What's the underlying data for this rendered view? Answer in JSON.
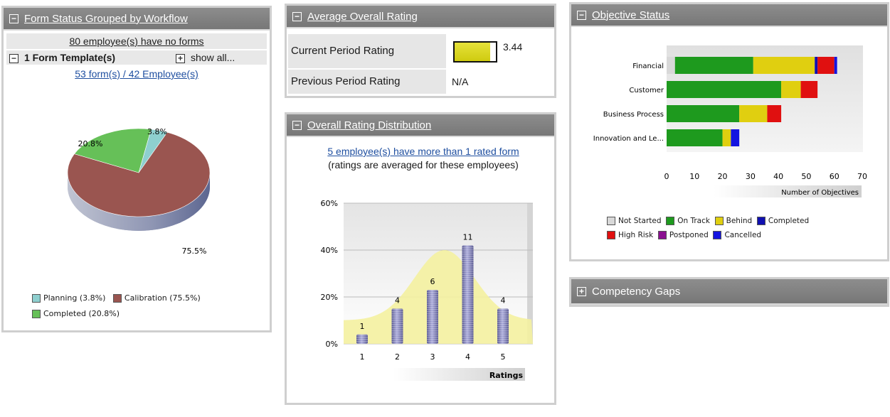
{
  "form_status": {
    "title": "Form Status Grouped by Workflow",
    "no_forms_text": "80 employee(s) have no forms",
    "template_label": "1 Form Template(s)",
    "show_all": "show all...",
    "forms_link": "53 form(s) / 42 Employee(s)",
    "legend": [
      {
        "label": "Planning (3.8%)",
        "color": "#8ecfcf"
      },
      {
        "label": "Calibration (75.5%)",
        "color": "#9a5550"
      },
      {
        "label": "Completed (20.8%)",
        "color": "#66c058"
      }
    ],
    "chart_data": {
      "type": "pie",
      "labels": [
        "Planning",
        "Calibration",
        "Completed"
      ],
      "values": [
        3.8,
        75.5,
        20.8
      ],
      "colors": [
        "#8ecfcf",
        "#9a5550",
        "#66c058"
      ],
      "data_labels": [
        "3.8%",
        "75.5%",
        "20.8%"
      ]
    }
  },
  "avg_rating": {
    "title": "Average Overall Rating",
    "rows": [
      {
        "label": "Current Period Rating",
        "value": "3.44",
        "fill_fraction": 0.86
      },
      {
        "label": "Previous Period Rating",
        "value": "N/A"
      }
    ]
  },
  "rating_dist": {
    "title": "Overall Rating Distribution",
    "link": "5 employee(s) have more than 1 rated form",
    "note": "(ratings are averaged for these employees)",
    "chart_data": {
      "type": "bar",
      "categories": [
        "1",
        "2",
        "3",
        "4",
        "5"
      ],
      "values": [
        4,
        15,
        23,
        42,
        15
      ],
      "data_labels": [
        "1",
        "4",
        "6",
        "11",
        "4"
      ],
      "yticks": [
        "60%",
        "40%",
        "20%",
        "0%"
      ],
      "ylim": [
        0,
        60
      ],
      "xlabel": "Ratings",
      "bar_color": "#7a79b4",
      "curve_color": "#f3f0a0"
    }
  },
  "objective_status": {
    "title": "Objective Status",
    "legend": [
      {
        "label": "Not Started",
        "color": "#d8d8d8"
      },
      {
        "label": "On Track",
        "color": "#1e9a1e"
      },
      {
        "label": "Behind",
        "color": "#e0cf10"
      },
      {
        "label": "Completed",
        "color": "#1010b0"
      },
      {
        "label": "High Risk",
        "color": "#e01010"
      },
      {
        "label": "Postponed",
        "color": "#8a1090"
      },
      {
        "label": "Cancelled",
        "color": "#1414e0"
      }
    ],
    "chart_data": {
      "type": "bar",
      "orientation": "horizontal",
      "categories": [
        "Financial",
        "Customer",
        "Business Process",
        "Innovation and Le..."
      ],
      "series": [
        {
          "name": "Not Started",
          "values": [
            3,
            0,
            0,
            0
          ]
        },
        {
          "name": "On Track",
          "values": [
            28,
            41,
            26,
            20
          ]
        },
        {
          "name": "Behind",
          "values": [
            22,
            7,
            10,
            3
          ]
        },
        {
          "name": "Completed",
          "values": [
            1,
            0,
            0,
            0
          ]
        },
        {
          "name": "High Risk",
          "values": [
            6,
            6,
            5,
            0
          ]
        },
        {
          "name": "Postponed",
          "values": [
            0,
            0,
            0,
            0
          ]
        },
        {
          "name": "Cancelled",
          "values": [
            1,
            0,
            0,
            3
          ]
        }
      ],
      "series_colors": [
        "#d8d8d8",
        "#1e9a1e",
        "#e0cf10",
        "#1010b0",
        "#e01010",
        "#8a1090",
        "#1414e0"
      ],
      "xticks": [
        "0",
        "10",
        "20",
        "30",
        "40",
        "50",
        "60",
        "70"
      ],
      "xlim": [
        0,
        70
      ],
      "xlabel": "Number of Objectives"
    }
  },
  "competency": {
    "title": "Competency Gaps"
  }
}
